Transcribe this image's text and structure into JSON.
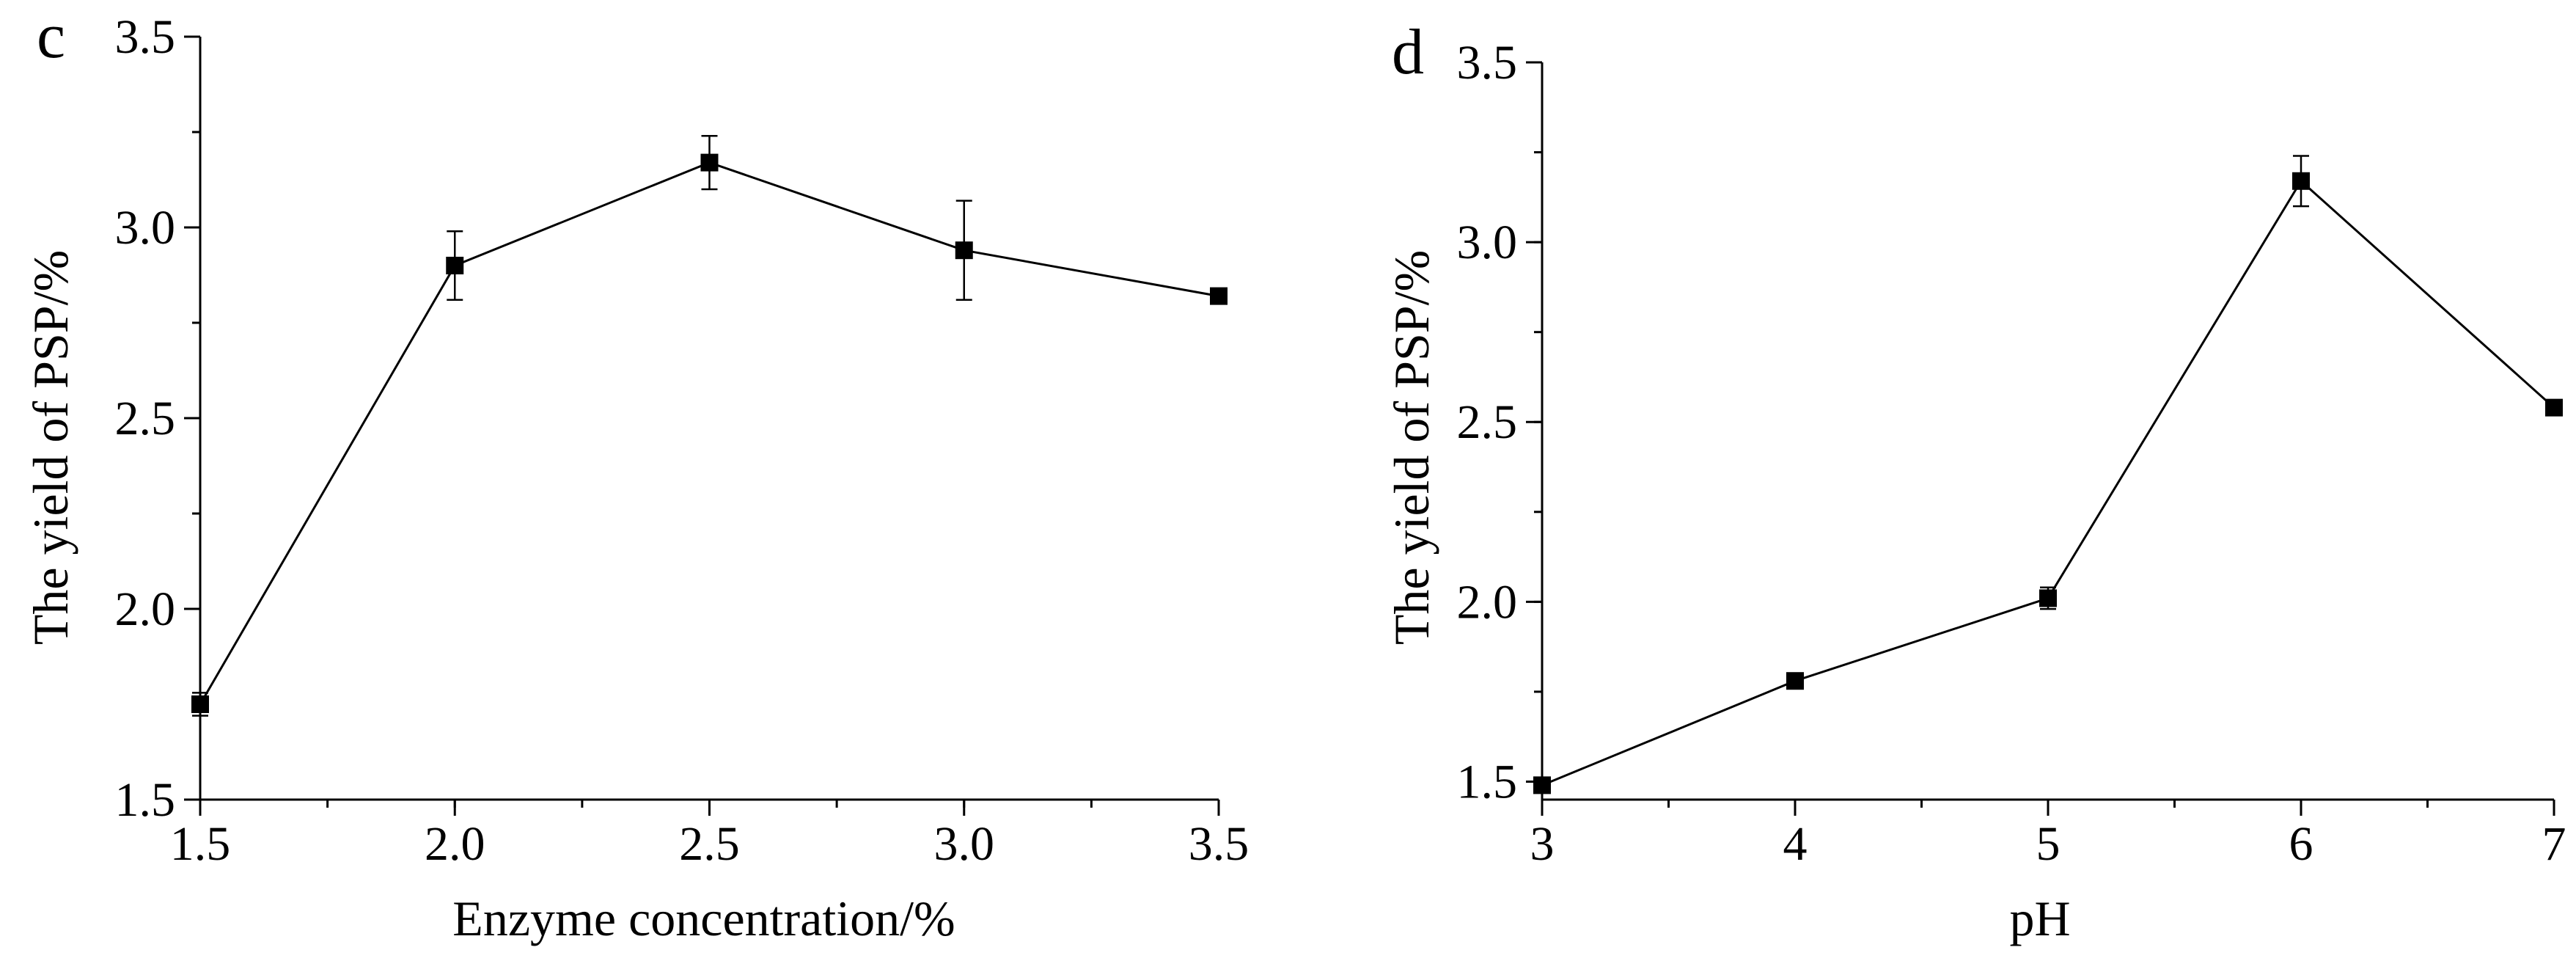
{
  "chart_data": [
    {
      "type": "line",
      "panel_label": "c",
      "xlabel": "Enzyme concentration/%",
      "ylabel": "The yield of PSP/%",
      "xlim": [
        1.5,
        3.5
      ],
      "ylim": [
        1.5,
        3.5
      ],
      "x_ticks": [
        "1.5",
        "2.0",
        "2.5",
        "3.0",
        "3.5"
      ],
      "y_ticks": [
        "1.5",
        "2.0",
        "2.5",
        "3.0",
        "3.5"
      ],
      "x_minor_step": 0.25,
      "y_minor_step": 0.25,
      "grid": false,
      "series": [
        {
          "x": [
            1.5,
            2.0,
            2.5,
            3.0,
            3.5
          ],
          "y": [
            1.75,
            2.9,
            3.17,
            2.94,
            2.82
          ],
          "error": [
            0.03,
            0.09,
            0.07,
            0.13,
            0.01
          ]
        }
      ]
    },
    {
      "type": "line",
      "panel_label": "d",
      "xlabel": "pH",
      "ylabel": "The yield of PSP/%",
      "xlim": [
        3,
        7
      ],
      "ylim": [
        1.45,
        3.5
      ],
      "x_ticks": [
        "3",
        "4",
        "5",
        "6",
        "7"
      ],
      "y_ticks": [
        "1.5",
        "2.0",
        "2.5",
        "3.0",
        "3.5"
      ],
      "x_minor_step": 0.5,
      "y_minor_step": 0.25,
      "grid": false,
      "series": [
        {
          "x": [
            3,
            4,
            5,
            6,
            7
          ],
          "y": [
            1.49,
            1.78,
            2.01,
            3.17,
            2.54
          ],
          "error": [
            0.01,
            0.01,
            0.03,
            0.07,
            0.01
          ]
        }
      ]
    }
  ]
}
